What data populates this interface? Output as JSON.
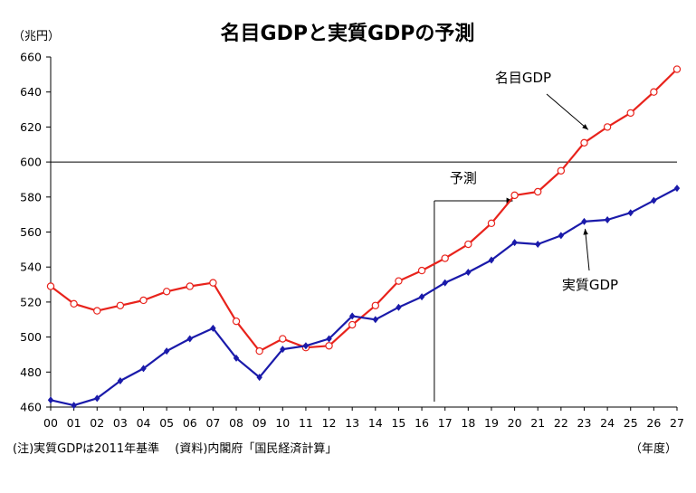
{
  "chart_data": {
    "type": "line",
    "title": "名目GDPと実質GDPの予測",
    "y_unit_label": "（兆円）",
    "x_unit_label": "（年度）",
    "note": "(注)実質GDPは2011年基準　 (資料)内閣府「国民経済計算」",
    "forecast_label": "予測",
    "forecast_start_category": "17",
    "ylim": [
      460,
      660
    ],
    "y_ticks": [
      460,
      480,
      500,
      520,
      540,
      560,
      580,
      600,
      620,
      640,
      660
    ],
    "highlight_gridline": 600,
    "categories": [
      "00",
      "01",
      "02",
      "03",
      "04",
      "05",
      "06",
      "07",
      "08",
      "09",
      "10",
      "11",
      "12",
      "13",
      "14",
      "15",
      "16",
      "17",
      "18",
      "19",
      "20",
      "21",
      "22",
      "23",
      "24",
      "25",
      "26",
      "27"
    ],
    "series": [
      {
        "name": "名目GDP",
        "color": "#e8231c",
        "marker": "open-circle",
        "values": [
          529,
          519,
          515,
          518,
          521,
          526,
          529,
          531,
          509,
          492,
          499,
          494,
          495,
          507,
          518,
          532,
          538,
          545,
          553,
          565,
          581,
          583,
          595,
          611,
          620,
          628,
          640,
          653
        ]
      },
      {
        "name": "実質GDP",
        "color": "#1a1aaa",
        "marker": "diamond",
        "values": [
          464,
          461,
          465,
          475,
          482,
          492,
          499,
          505,
          488,
          477,
          493,
          495,
          499,
          512,
          510,
          517,
          523,
          531,
          537,
          544,
          554,
          553,
          558,
          566,
          567,
          571,
          578,
          585
        ]
      }
    ]
  }
}
